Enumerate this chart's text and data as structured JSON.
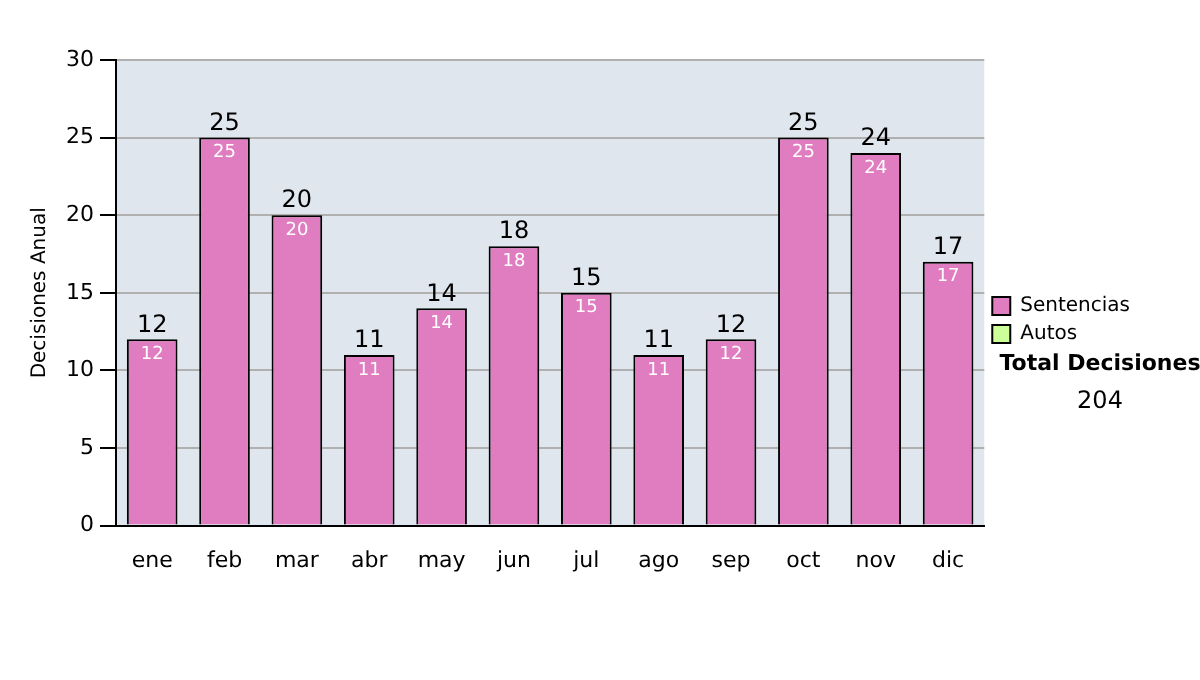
{
  "chart_data": {
    "type": "bar",
    "ylabel": "Decisiones Anual",
    "categories": [
      "ene",
      "feb",
      "mar",
      "abr",
      "may",
      "jun",
      "jul",
      "ago",
      "sep",
      "oct",
      "nov",
      "dic"
    ],
    "series": [
      {
        "name": "Sentencias",
        "color": "#e07cc0",
        "values": [
          12,
          25,
          20,
          11,
          14,
          18,
          15,
          11,
          12,
          25,
          24,
          17
        ],
        "value_labels": [
          "12",
          "25",
          "20",
          "11",
          "14",
          "18",
          "15",
          "11",
          "12",
          "25",
          "24",
          "17"
        ]
      },
      {
        "name": "Autos",
        "color": "#ccff99",
        "values": [
          0,
          0,
          0,
          0,
          0,
          0,
          0,
          0,
          0,
          0,
          0,
          0
        ]
      }
    ],
    "stacked": true,
    "totals": [
      "12",
      "25",
      "20",
      "11",
      "14",
      "18",
      "15",
      "11",
      "12",
      "25",
      "24",
      "17"
    ],
    "ylim": [
      0,
      30
    ],
    "yticks": [
      0,
      5,
      10,
      15,
      20,
      25,
      30
    ],
    "grid": "y",
    "legend": "right",
    "annotations": [
      "Total Decisiones",
      "204"
    ]
  }
}
